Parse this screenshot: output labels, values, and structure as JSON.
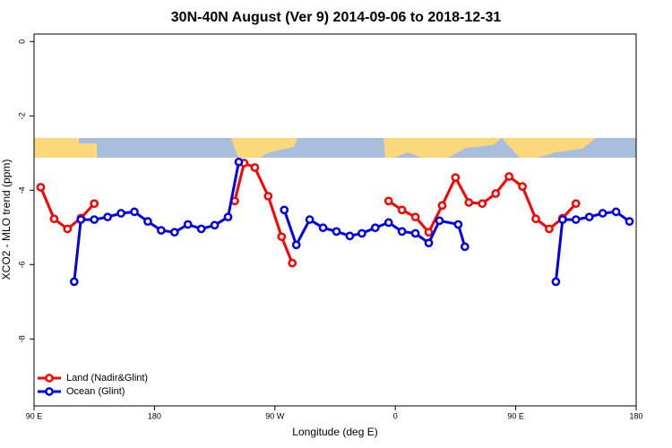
{
  "chart_data": {
    "type": "line",
    "title": "30N-40N August (Ver 9)   2014-09-06 to 2018-12-31",
    "xlabel": "Longitude (deg E)",
    "ylabel": "XCO2 - MLO trend (ppm)",
    "xlim": [
      90,
      540
    ],
    "xticks": [
      {
        "value": 90,
        "label": "90 E"
      },
      180,
      {
        "value": 270,
        "label": "90 W"
      },
      {
        "value": 360,
        "label": "0"
      },
      {
        "value": 450,
        "label": "90 E"
      },
      {
        "value": 540,
        "label": "180"
      }
    ],
    "ylim": [
      -9.8,
      0.2
    ],
    "yticks": [
      0,
      -2,
      -4,
      -6,
      -8
    ],
    "legend": "bottom-left",
    "series": [
      {
        "name": "Land (Nadir&Glint)",
        "color": "#ff0000",
        "x": [
          95,
          105,
          115,
          125,
          135,
          null,
          240,
          247,
          255,
          265,
          275,
          283,
          null,
          355,
          365,
          375,
          385,
          395,
          405,
          415,
          425,
          435,
          445,
          455,
          465,
          475,
          485,
          495
        ],
        "values": [
          -3.92,
          -4.77,
          -5.04,
          -4.75,
          -4.36,
          null,
          -4.29,
          -3.27,
          -3.39,
          -4.16,
          -5.25,
          -5.96,
          null,
          -4.29,
          -4.53,
          -4.72,
          -5.13,
          -4.41,
          -3.66,
          -4.33,
          -4.36,
          -4.09,
          -3.63,
          -3.9,
          -4.77,
          -5.04,
          -4.75,
          -4.36
        ]
      },
      {
        "name": "Ocean (Glint)",
        "color": "#0000ee",
        "x": [
          120,
          125,
          135,
          145,
          155,
          165,
          175,
          185,
          195,
          205,
          215,
          225,
          235,
          243,
          null,
          277,
          286,
          296,
          306,
          316,
          326,
          335,
          345,
          355,
          365,
          375,
          385,
          393,
          407,
          412,
          null,
          480,
          485,
          495,
          505,
          515,
          525,
          535
        ],
        "values": [
          -6.46,
          -4.79,
          -4.79,
          -4.72,
          -4.62,
          -4.58,
          -4.84,
          -5.08,
          -5.13,
          -4.92,
          -5.04,
          -4.94,
          -4.72,
          -3.24,
          null,
          -4.53,
          -5.47,
          -4.79,
          -5.01,
          -5.11,
          -5.23,
          -5.16,
          -5.01,
          -4.87,
          -5.11,
          -5.16,
          -5.42,
          -4.82,
          -4.92,
          -5.52,
          null,
          -6.46,
          -4.79,
          -4.79,
          -4.72,
          -4.62,
          -4.58,
          -4.84
        ]
      }
    ]
  }
}
